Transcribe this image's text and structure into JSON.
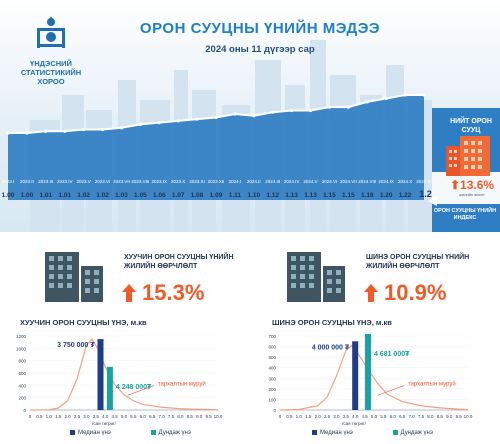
{
  "logo": {
    "text": "ҮНДЭСНИЙ СТАТИСТИКИЙН ХОРОО"
  },
  "header": {
    "title": "ОРОН СУУЦНЫ ҮНИЙН МЭДЭЭ",
    "subtitle": "2024 оны 11 дүгээр сар"
  },
  "total": {
    "label": "НИЙТ ОРОН СУУЦ",
    "pct": "13.6%",
    "pct_sub": "жилийн өсөлт",
    "index_label": "ОРОН СУУЦНЫ ҮНИЙН ИНДЕКС"
  },
  "colors": {
    "blue": "#2f7ec4",
    "dark_blue": "#1f3c88",
    "teal": "#17a2a6",
    "orange": "#f05a28"
  },
  "sections": {
    "old": {
      "title": "ХУУЧИН ОРОН СУУЦНЫ ҮНИЙН ЖИЛИЙН ӨӨРЧЛӨЛТ",
      "pct": "15.3%"
    },
    "new": {
      "title": "ШИНЭ ОРОН СУУЦНЫ ҮНИЙН ЖИЛИЙН ӨӨРЧЛӨЛТ",
      "pct": "10.9%"
    }
  },
  "chart_data": [
    {
      "type": "line",
      "title": "",
      "x": [
        "2023.I",
        "2023.II",
        "2023.III",
        "2023.IV",
        "2023.V",
        "2023.VI",
        "2023.VII",
        "2023.VIII",
        "2023.IX",
        "2023.X",
        "2023.XI",
        "2023.XII",
        "2024.I",
        "2024.II",
        "2024.III",
        "2024.IV",
        "2024.V",
        "2024.VI",
        "2024.VII",
        "2024.VIII",
        "2024.IX",
        "2024.X",
        "2024.XI"
      ],
      "values": [
        1.0,
        1.0,
        1.01,
        1.01,
        1.02,
        1.02,
        1.03,
        1.05,
        1.06,
        1.07,
        1.08,
        1.09,
        1.11,
        1.1,
        1.12,
        1.13,
        1.13,
        1.15,
        1.15,
        1.18,
        1.2,
        1.22,
        1.22
      ],
      "value_labels": [
        "1.00",
        "1.00",
        "1.01",
        "1.01",
        "1.02",
        "1.02",
        "1.03",
        "1.05",
        "1.06",
        "1.07",
        "1.08",
        "1.09",
        "1.11",
        "1.10",
        "1.12",
        "1.13",
        "1.13",
        "1.15",
        "1.15",
        "1.18",
        "1.20",
        "1.22",
        ""
      ]
    },
    {
      "type": "bar",
      "title": "ХУУЧИН ОРОН СУУЦНЫ ҮНЭ, м.кв",
      "xlabel": "/сая төгрөг/",
      "x_ticks": [
        "0",
        "0.5",
        "1.0",
        "1.5",
        "2.0",
        "2.5",
        "3.0",
        "3.5",
        "4.0",
        "4.5",
        "5.0",
        "5.5",
        "6.0",
        "6.5",
        "7.0",
        "7.5",
        "8.0",
        "8.5",
        "9.0",
        "9.5",
        "10.0"
      ],
      "y_ticks": [
        "0",
        "200",
        "400",
        "600",
        "800",
        "1000",
        "1200"
      ],
      "ylim": [
        0,
        1200
      ],
      "median": {
        "label": "3 750 000 ₮",
        "x": 3.75,
        "value": 1150,
        "legend": "Медиан үнэ"
      },
      "mean": {
        "label": "4 248 000₮",
        "x": 4.25,
        "value": 700,
        "legend": "Дундаж үнэ"
      },
      "curve_label": "тархалтын муруй",
      "curve": [
        [
          0,
          0
        ],
        [
          1.0,
          5
        ],
        [
          1.5,
          30
        ],
        [
          2.0,
          150
        ],
        [
          2.5,
          500
        ],
        [
          3.0,
          1050
        ],
        [
          3.3,
          1150
        ],
        [
          3.7,
          950
        ],
        [
          4.0,
          700
        ],
        [
          4.5,
          420
        ],
        [
          5.0,
          250
        ],
        [
          5.5,
          150
        ],
        [
          6.0,
          90
        ],
        [
          7.0,
          45
        ],
        [
          8.0,
          20
        ],
        [
          9.0,
          10
        ],
        [
          10.0,
          5
        ]
      ]
    },
    {
      "type": "bar",
      "title": "ШИНЭ ОРОН СУУЦНЫ ҮНЭ, м.кв",
      "xlabel": "/сая төгрөг/",
      "x_ticks": [
        "0",
        "0.5",
        "1.0",
        "1.5",
        "2.0",
        "2.5",
        "3.0",
        "3.5",
        "4.0",
        "4.5",
        "5.0",
        "5.5",
        "6.0",
        "6.5",
        "7.0",
        "7.5",
        "8.0",
        "8.5",
        "9.0",
        "9.5",
        "10.0"
      ],
      "y_ticks": [
        "0",
        "100",
        "200",
        "300",
        "400",
        "500",
        "600",
        "700"
      ],
      "ylim": [
        0,
        700
      ],
      "median": {
        "label": "4 000 000 ₮",
        "x": 4.0,
        "value": 650,
        "legend": "Медиан үнэ"
      },
      "mean": {
        "label": "4 681 000₮",
        "x": 4.68,
        "value": 720,
        "legend": "Дундаж үнэ"
      },
      "curve_label": "тархалтын муруй",
      "curve": [
        [
          0,
          0
        ],
        [
          1.0,
          5
        ],
        [
          2.0,
          40
        ],
        [
          2.5,
          120
        ],
        [
          3.0,
          320
        ],
        [
          3.5,
          560
        ],
        [
          3.8,
          610
        ],
        [
          4.2,
          520
        ],
        [
          4.7,
          380
        ],
        [
          5.2,
          250
        ],
        [
          5.7,
          150
        ],
        [
          6.5,
          80
        ],
        [
          7.5,
          40
        ],
        [
          8.5,
          20
        ],
        [
          9.5,
          8
        ],
        [
          10.0,
          5
        ]
      ]
    }
  ]
}
